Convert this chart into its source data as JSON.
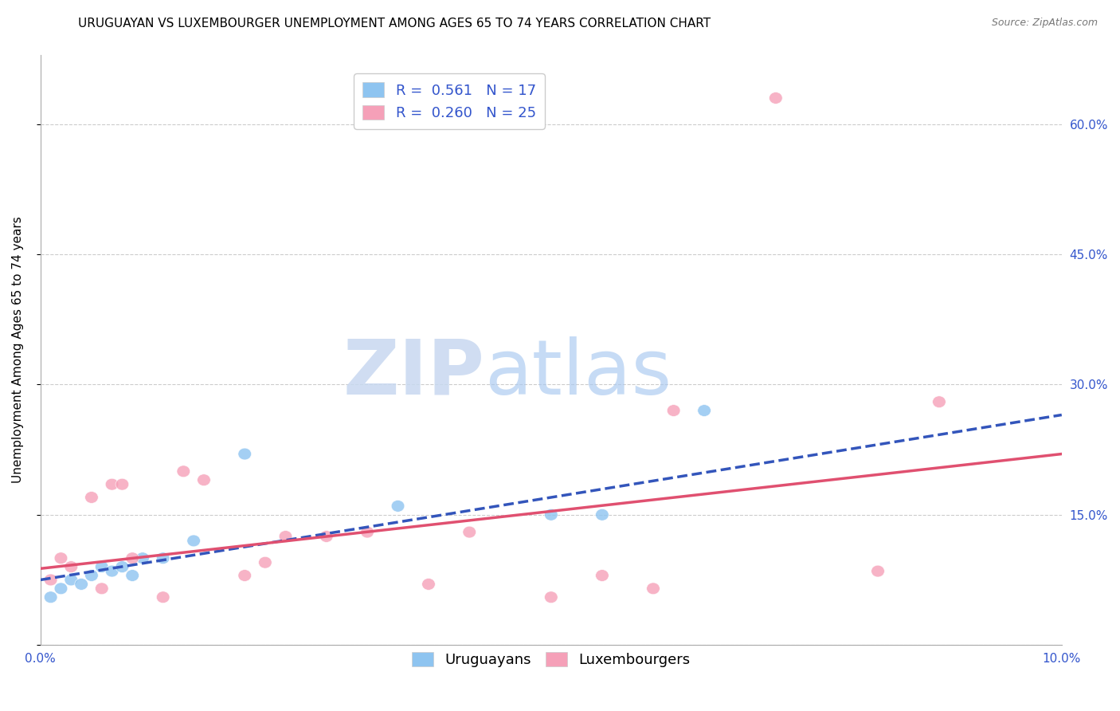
{
  "title": "URUGUAYAN VS LUXEMBOURGER UNEMPLOYMENT AMONG AGES 65 TO 74 YEARS CORRELATION CHART",
  "source": "Source: ZipAtlas.com",
  "ylabel": "Unemployment Among Ages 65 to 74 years",
  "xlim": [
    0.0,
    0.1
  ],
  "ylim": [
    0.0,
    0.68
  ],
  "yticks": [
    0.0,
    0.15,
    0.3,
    0.45,
    0.6
  ],
  "ytick_labels": [
    "",
    "15.0%",
    "30.0%",
    "45.0%",
    "60.0%"
  ],
  "xticks": [
    0.0,
    0.02,
    0.04,
    0.06,
    0.08,
    0.1
  ],
  "xtick_labels": [
    "0.0%",
    "",
    "",
    "",
    "",
    "10.0%"
  ],
  "blue_R": 0.561,
  "blue_N": 17,
  "pink_R": 0.26,
  "pink_N": 25,
  "blue_color": "#8EC4F0",
  "pink_color": "#F5A0B8",
  "blue_line_color": "#3355BB",
  "pink_line_color": "#E05070",
  "blue_line_style": "--",
  "pink_line_style": "-",
  "blue_scatter_x": [
    0.001,
    0.002,
    0.003,
    0.004,
    0.005,
    0.006,
    0.007,
    0.008,
    0.009,
    0.01,
    0.012,
    0.015,
    0.02,
    0.035,
    0.05,
    0.055,
    0.065
  ],
  "blue_scatter_y": [
    0.055,
    0.065,
    0.075,
    0.07,
    0.08,
    0.09,
    0.085,
    0.09,
    0.08,
    0.1,
    0.1,
    0.12,
    0.22,
    0.16,
    0.15,
    0.15,
    0.27
  ],
  "pink_scatter_x": [
    0.001,
    0.002,
    0.003,
    0.005,
    0.006,
    0.007,
    0.008,
    0.009,
    0.012,
    0.014,
    0.016,
    0.02,
    0.022,
    0.024,
    0.028,
    0.032,
    0.038,
    0.042,
    0.05,
    0.055,
    0.06,
    0.062,
    0.072,
    0.082,
    0.088
  ],
  "pink_scatter_y": [
    0.075,
    0.1,
    0.09,
    0.17,
    0.065,
    0.185,
    0.185,
    0.1,
    0.055,
    0.2,
    0.19,
    0.08,
    0.095,
    0.125,
    0.125,
    0.13,
    0.07,
    0.13,
    0.055,
    0.08,
    0.065,
    0.27,
    0.63,
    0.085,
    0.28
  ],
  "blue_line_x0": 0.0,
  "blue_line_y0": 0.075,
  "blue_line_x1": 0.1,
  "blue_line_y1": 0.265,
  "pink_line_x0": 0.0,
  "pink_line_y0": 0.088,
  "pink_line_x1": 0.1,
  "pink_line_y1": 0.22,
  "background_color": "#FFFFFF",
  "grid_color": "#CCCCCC",
  "title_fontsize": 11,
  "axis_label_fontsize": 11,
  "tick_fontsize": 11,
  "legend_fontsize": 13,
  "watermark_zip_color": "#C8D8F0",
  "watermark_atlas_color": "#A8C8F0"
}
